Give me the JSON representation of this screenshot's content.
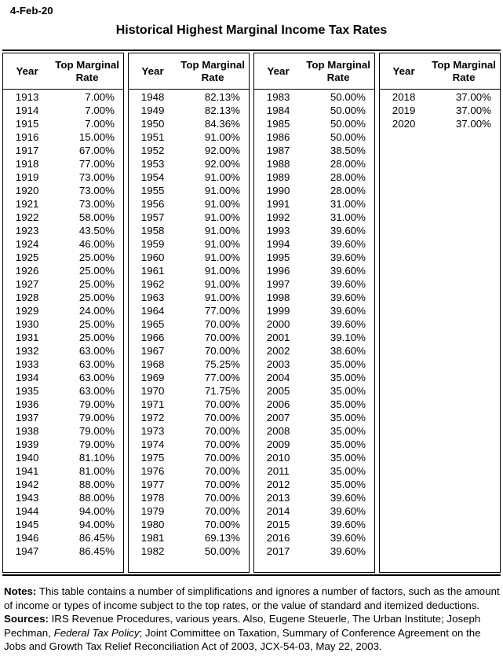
{
  "page": {
    "date": "4-Feb-20",
    "title": "Historical Highest Marginal Income Tax Rates"
  },
  "colors": {
    "text": "#000000",
    "background": "#ffffff",
    "border": "#000000"
  },
  "table": {
    "column_headers": [
      "Year",
      "Top Marginal Rate"
    ],
    "groups": [
      {
        "rows": [
          [
            "1913",
            "7.00%"
          ],
          [
            "1914",
            "7.00%"
          ],
          [
            "1915",
            "7.00%"
          ],
          [
            "1916",
            "15.00%"
          ],
          [
            "1917",
            "67.00%"
          ],
          [
            "1918",
            "77.00%"
          ],
          [
            "1919",
            "73.00%"
          ],
          [
            "1920",
            "73.00%"
          ],
          [
            "1921",
            "73.00%"
          ],
          [
            "1922",
            "58.00%"
          ],
          [
            "1923",
            "43.50%"
          ],
          [
            "1924",
            "46.00%"
          ],
          [
            "1925",
            "25.00%"
          ],
          [
            "1926",
            "25.00%"
          ],
          [
            "1927",
            "25.00%"
          ],
          [
            "1928",
            "25.00%"
          ],
          [
            "1929",
            "24.00%"
          ],
          [
            "1930",
            "25.00%"
          ],
          [
            "1931",
            "25.00%"
          ],
          [
            "1932",
            "63.00%"
          ],
          [
            "1933",
            "63.00%"
          ],
          [
            "1934",
            "63.00%"
          ],
          [
            "1935",
            "63.00%"
          ],
          [
            "1936",
            "79.00%"
          ],
          [
            "1937",
            "79.00%"
          ],
          [
            "1938",
            "79.00%"
          ],
          [
            "1939",
            "79.00%"
          ],
          [
            "1940",
            "81.10%"
          ],
          [
            "1941",
            "81.00%"
          ],
          [
            "1942",
            "88.00%"
          ],
          [
            "1943",
            "88.00%"
          ],
          [
            "1944",
            "94.00%"
          ],
          [
            "1945",
            "94.00%"
          ],
          [
            "1946",
            "86.45%"
          ],
          [
            "1947",
            "86.45%"
          ]
        ]
      },
      {
        "rows": [
          [
            "1948",
            "82.13%"
          ],
          [
            "1949",
            "82.13%"
          ],
          [
            "1950",
            "84.36%"
          ],
          [
            "1951",
            "91.00%"
          ],
          [
            "1952",
            "92.00%"
          ],
          [
            "1953",
            "92.00%"
          ],
          [
            "1954",
            "91.00%"
          ],
          [
            "1955",
            "91.00%"
          ],
          [
            "1956",
            "91.00%"
          ],
          [
            "1957",
            "91.00%"
          ],
          [
            "1958",
            "91.00%"
          ],
          [
            "1959",
            "91.00%"
          ],
          [
            "1960",
            "91.00%"
          ],
          [
            "1961",
            "91.00%"
          ],
          [
            "1962",
            "91.00%"
          ],
          [
            "1963",
            "91.00%"
          ],
          [
            "1964",
            "77.00%"
          ],
          [
            "1965",
            "70.00%"
          ],
          [
            "1966",
            "70.00%"
          ],
          [
            "1967",
            "70.00%"
          ],
          [
            "1968",
            "75.25%"
          ],
          [
            "1969",
            "77.00%"
          ],
          [
            "1970",
            "71.75%"
          ],
          [
            "1971",
            "70.00%"
          ],
          [
            "1972",
            "70.00%"
          ],
          [
            "1973",
            "70.00%"
          ],
          [
            "1974",
            "70.00%"
          ],
          [
            "1975",
            "70.00%"
          ],
          [
            "1976",
            "70.00%"
          ],
          [
            "1977",
            "70.00%"
          ],
          [
            "1978",
            "70.00%"
          ],
          [
            "1979",
            "70.00%"
          ],
          [
            "1980",
            "70.00%"
          ],
          [
            "1981",
            "69.13%"
          ],
          [
            "1982",
            "50.00%"
          ]
        ]
      },
      {
        "rows": [
          [
            "1983",
            "50.00%"
          ],
          [
            "1984",
            "50.00%"
          ],
          [
            "1985",
            "50.00%"
          ],
          [
            "1986",
            "50.00%"
          ],
          [
            "1987",
            "38.50%"
          ],
          [
            "1988",
            "28.00%"
          ],
          [
            "1989",
            "28.00%"
          ],
          [
            "1990",
            "28.00%"
          ],
          [
            "1991",
            "31.00%"
          ],
          [
            "1992",
            "31.00%"
          ],
          [
            "1993",
            "39.60%"
          ],
          [
            "1994",
            "39.60%"
          ],
          [
            "1995",
            "39.60%"
          ],
          [
            "1996",
            "39.60%"
          ],
          [
            "1997",
            "39.60%"
          ],
          [
            "1998",
            "39.60%"
          ],
          [
            "1999",
            "39.60%"
          ],
          [
            "2000",
            "39.60%"
          ],
          [
            "2001",
            "39.10%"
          ],
          [
            "2002",
            "38.60%"
          ],
          [
            "2003",
            "35.00%"
          ],
          [
            "2004",
            "35.00%"
          ],
          [
            "2005",
            "35.00%"
          ],
          [
            "2006",
            "35.00%"
          ],
          [
            "2007",
            "35.00%"
          ],
          [
            "2008",
            "35.00%"
          ],
          [
            "2009",
            "35.00%"
          ],
          [
            "2010",
            "35.00%"
          ],
          [
            "2011",
            "35.00%"
          ],
          [
            "2012",
            "35.00%"
          ],
          [
            "2013",
            "39.60%"
          ],
          [
            "2014",
            "39.60%"
          ],
          [
            "2015",
            "39.60%"
          ],
          [
            "2016",
            "39.60%"
          ],
          [
            "2017",
            "39.60%"
          ]
        ]
      },
      {
        "rows": [
          [
            "2018",
            "37.00%"
          ],
          [
            "2019",
            "37.00%"
          ],
          [
            "2020",
            "37.00%"
          ]
        ]
      }
    ]
  },
  "notes": {
    "notes_label": "Notes:",
    "notes_text": " This table contains a number of simplifications and ignores a number of factors, such as the amount of income or types of income subject to the top rates, or the value of standard and itemized deductions.",
    "sources_label": "Sources:",
    "sources_text_1": " IRS Revenue Procedures, various years. Also, Eugene Steuerle, The Urban Institute; Joseph Pechman, ",
    "sources_italic": "Federal Tax Policy",
    "sources_text_2": "; Joint Committee on Taxation, Summary of Conference Agreement on the Jobs and Growth Tax Relief Reconciliation Act of 2003, JCX-54-03, May 22, 2003."
  }
}
